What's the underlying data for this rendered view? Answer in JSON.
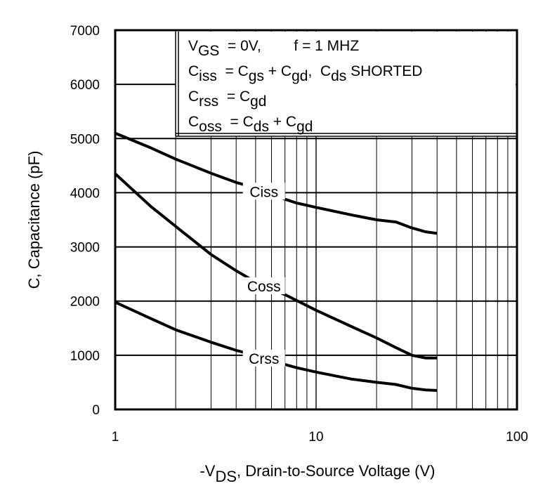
{
  "chart_data": {
    "type": "line",
    "xscale": "log",
    "xlim": [
      1,
      100
    ],
    "ylim": [
      0,
      7000
    ],
    "grid": true,
    "x_ticks": [
      "1",
      "10",
      "100"
    ],
    "y_ticks": [
      "0",
      "1000",
      "2000",
      "3000",
      "4000",
      "5000",
      "6000",
      "7000"
    ],
    "xlabel": "-V",
    "xlabel_sub": "DS",
    "xlabel_rest": ", Drain-to-Source Voltage (V)",
    "ylabel": "C, Capacitance (pF)",
    "legend_placement": "top-right",
    "conditions": [
      [
        {
          "t": "V"
        },
        {
          "t": "GS",
          "sub": true
        },
        {
          "t": "  = 0V,        f = 1 MHZ"
        }
      ],
      [
        {
          "t": "C"
        },
        {
          "t": "iss",
          "sub": true
        },
        {
          "t": "  = C"
        },
        {
          "t": "gs",
          "sub": true
        },
        {
          "t": " + C"
        },
        {
          "t": "gd",
          "sub": true
        },
        {
          "t": ",  C"
        },
        {
          "t": "ds",
          "sub": true
        },
        {
          "t": " SHORTED"
        }
      ],
      [
        {
          "t": "C"
        },
        {
          "t": "rss",
          "sub": true
        },
        {
          "t": "  = C"
        },
        {
          "t": "gd",
          "sub": true
        }
      ],
      [
        {
          "t": "C"
        },
        {
          "t": "oss",
          "sub": true
        },
        {
          "t": "  = C"
        },
        {
          "t": "ds",
          "sub": true
        },
        {
          "t": " + C"
        },
        {
          "t": "gd",
          "sub": true
        }
      ]
    ],
    "series": [
      {
        "name": "Ciss",
        "label_at": 5.5,
        "x": [
          1,
          1.5,
          2,
          3,
          4,
          5,
          6,
          7,
          8,
          10,
          15,
          20,
          25,
          30,
          35,
          40
        ],
        "values": [
          5100,
          4830,
          4620,
          4360,
          4190,
          4090,
          3970,
          3880,
          3810,
          3730,
          3590,
          3500,
          3460,
          3350,
          3280,
          3250
        ]
      },
      {
        "name": "Coss",
        "label_at": 5.5,
        "x": [
          1,
          1.5,
          2,
          3,
          4,
          5,
          6,
          7,
          8,
          10,
          15,
          20,
          25,
          30,
          35,
          40
        ],
        "values": [
          4350,
          3750,
          3380,
          2860,
          2560,
          2350,
          2220,
          2120,
          2010,
          1830,
          1530,
          1320,
          1140,
          1000,
          950,
          950
        ]
      },
      {
        "name": "Crss",
        "label_at": 5.5,
        "x": [
          1,
          1.5,
          2,
          3,
          4,
          5,
          6,
          7,
          8,
          10,
          15,
          20,
          25,
          30,
          35,
          40
        ],
        "values": [
          1980,
          1680,
          1470,
          1240,
          1090,
          1000,
          900,
          830,
          770,
          690,
          560,
          500,
          460,
          390,
          360,
          350
        ]
      }
    ]
  },
  "colors": {
    "line": "#000000",
    "background": "#ffffff"
  }
}
